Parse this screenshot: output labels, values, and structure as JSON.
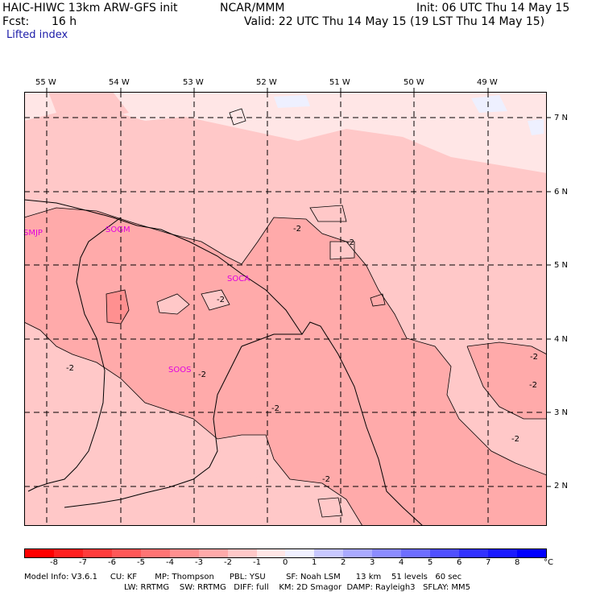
{
  "header": {
    "model": "HAIC-HIWC 13km ARW-GFS init",
    "org": "NCAR/MMM",
    "fcst_label": "Fcst:",
    "fcst_value": "16 h",
    "init": "Init: 06 UTC Thu 14 May 15",
    "valid": "Valid: 22 UTC Thu 14 May 15 (19 LST Thu 14 May 15)",
    "field": "Lifted index"
  },
  "map": {
    "lon_labels": [
      "55 W",
      "54 W",
      "53 W",
      "52 W",
      "51 W",
      "50 W",
      "49 W"
    ],
    "lat_labels": [
      "7 N",
      "6 N",
      "5 N",
      "4 N",
      "3 N",
      "2 N"
    ],
    "stations": [
      "SMJP",
      "SOGM",
      "SOCA",
      "SOOS"
    ],
    "contour_labels": [
      "-2",
      "-2",
      "-2",
      "-2",
      "-2",
      "-2",
      "-2",
      "-2",
      "-2",
      "-2"
    ]
  },
  "colorbar": {
    "ticks": [
      "-8",
      "-7",
      "-6",
      "-5",
      "-4",
      "-3",
      "-2",
      "-1",
      "0",
      "1",
      "2",
      "3",
      "4",
      "5",
      "6",
      "7",
      "8"
    ],
    "unit": "°C",
    "colors": [
      "#ff0000",
      "#ff2020",
      "#ff3c3c",
      "#ff5858",
      "#ff7474",
      "#ff9090",
      "#ffaaaa",
      "#ffc8c8",
      "#ffe6e6",
      "#f0f0ff",
      "#c8c8ff",
      "#aaaaff",
      "#8c8cff",
      "#6e6eff",
      "#5050ff",
      "#3232ff",
      "#0000ff"
    ]
  },
  "model_info": {
    "line1": "Model Info: V3.6.1     CU: KF       MP: Thompson      PBL: YSU        SF: Noah LSM      13 km    51 levels   60 sec",
    "line2": "LW: RRTMG    SW: RRTMG   DIFF: full    KM: 2D Smagor  DAMP: Rayleigh3   SFLAY: MM5"
  }
}
